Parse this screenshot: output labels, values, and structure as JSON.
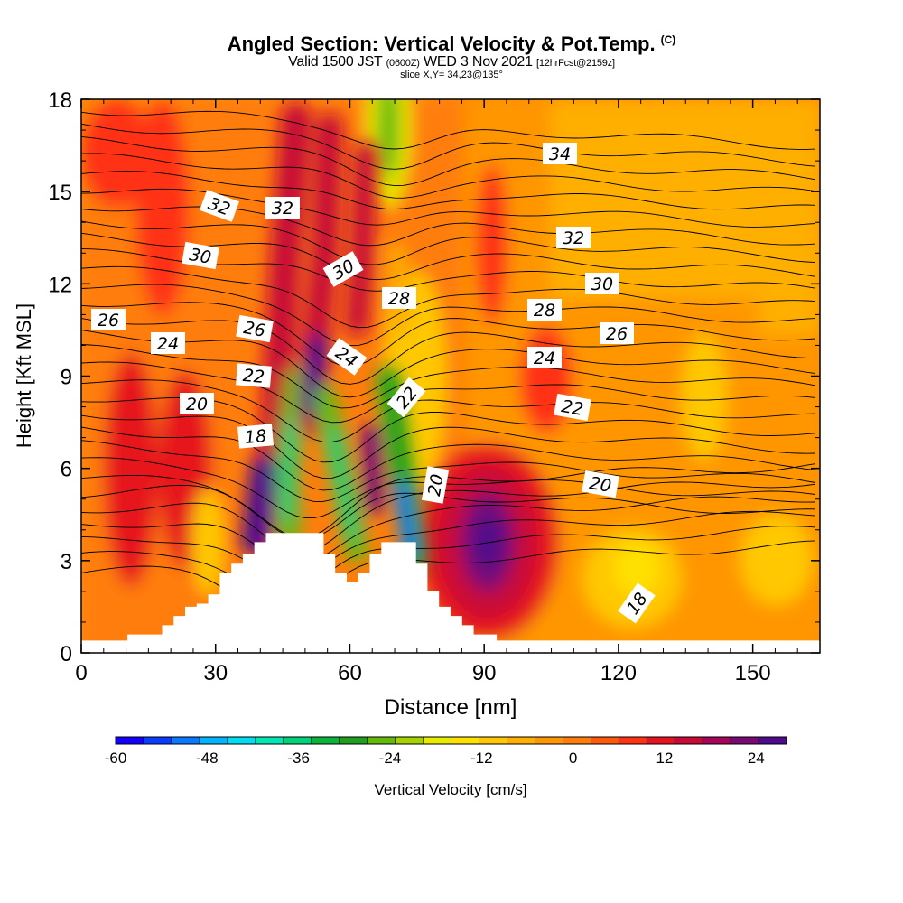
{
  "header": {
    "title": "Angled Section: Vertical Velocity & Pot.Temp.",
    "copyright": "(C)",
    "valid_main_1": "Valid 1500 JST",
    "valid_small_1": "(0600Z)",
    "valid_main_2": "WED 3 Nov 2021",
    "valid_small_2": "[12hrFcst@2159z]",
    "slice": "slice X,Y= 34,23@135°"
  },
  "chart_data": {
    "type": "heatmap",
    "title": "Angled Section: Vertical Velocity & Pot.Temp.",
    "xlabel": "Distance [nm]",
    "ylabel": "Height [Kft MSL]",
    "xlim": [
      0,
      165
    ],
    "ylim": [
      0,
      18
    ],
    "x_ticks": [
      "0",
      "30",
      "60",
      "90",
      "120",
      "150"
    ],
    "y_ticks": [
      "0",
      "3",
      "6",
      "9",
      "12",
      "15",
      "18"
    ],
    "colorbar": {
      "label": "Vertical Velocity [cm/s]",
      "range": [
        -60,
        28
      ],
      "tick_labels": [
        "-60",
        "-48",
        "-36",
        "-24",
        "-12",
        "0",
        "12",
        "24"
      ],
      "colors": [
        "#1400ff",
        "#0a3cff",
        "#0a78ff",
        "#00b4ff",
        "#00dcf0",
        "#00e6b4",
        "#00d278",
        "#0ab43c",
        "#1ea01e",
        "#64b90a",
        "#a5d200",
        "#e6eb00",
        "#ffe100",
        "#ffc800",
        "#ffaf00",
        "#ff9600",
        "#ff7d0a",
        "#ff5a0a",
        "#ff3214",
        "#e6141e",
        "#c80a37",
        "#a5055a",
        "#780a78",
        "#500a8c"
      ]
    },
    "theta_contour_labels": [
      "34",
      "32",
      "32",
      "32",
      "30",
      "30",
      "30",
      "28",
      "28",
      "26",
      "26",
      "26",
      "24",
      "24",
      "24",
      "22",
      "22",
      "22",
      "20",
      "20",
      "20",
      "18",
      "18"
    ],
    "velocity_features": [
      {
        "feature": "updraft",
        "x": 89,
        "height": 3.5,
        "value": 27
      },
      {
        "feature": "updraft",
        "x": 37,
        "height": 4.8,
        "value": 26
      },
      {
        "feature": "updraft",
        "x": 52,
        "height": 9.5,
        "value": 22
      },
      {
        "feature": "downdraft",
        "x": 71,
        "height": 3.5,
        "value": -48
      },
      {
        "feature": "downdraft",
        "x": 53,
        "height": 4.5,
        "value": -38
      },
      {
        "feature": "downdraft",
        "x": 44,
        "height": 4.5,
        "value": -32
      },
      {
        "feature": "downdraft",
        "x": 68,
        "height": 17.5,
        "value": -22
      },
      {
        "feature": "weak updraft",
        "x": 17,
        "height": 4.5,
        "value": 14
      }
    ],
    "terrain_heights_kft": [
      0.4,
      0.4,
      0.4,
      0.4,
      0.6,
      0.6,
      0.6,
      0.9,
      1.2,
      1.5,
      1.6,
      1.9,
      2.6,
      2.9,
      3.2,
      3.6,
      3.9,
      3.9,
      3.9,
      3.9,
      3.9,
      3.2,
      2.6,
      2.3,
      2.6,
      3.2,
      3.6,
      3.6,
      3.6,
      2.9,
      2.0,
      1.5,
      1.2,
      0.9,
      0.6,
      0.6,
      0.4,
      0.4,
      0.4,
      0.4,
      0.4,
      0.4,
      0.4,
      0.4,
      0.4,
      0.4,
      0.4,
      0.4,
      0.4,
      0.4,
      0.4,
      0.4,
      0.4,
      0.4,
      0.4,
      0.4,
      0.4,
      0.4,
      0.4,
      0.4,
      0.4,
      0.4,
      0.4,
      0.4,
      0.4
    ]
  }
}
